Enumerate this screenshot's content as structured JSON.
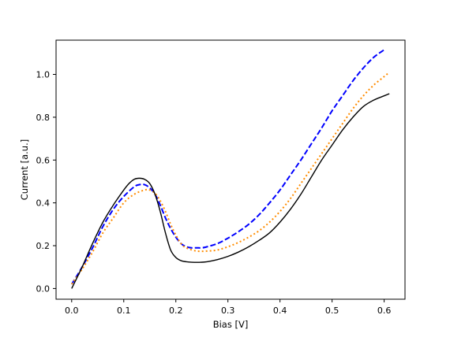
{
  "chart_data": {
    "type": "line",
    "title": "",
    "xlabel": "Bias [V]",
    "ylabel": "Current [a.u.]",
    "xlim": [
      -0.03,
      0.64
    ],
    "ylim": [
      -0.05,
      1.16
    ],
    "xticks": [
      0.0,
      0.1,
      0.2,
      0.3,
      0.4,
      0.5,
      0.6
    ],
    "xtick_labels": [
      "0.0",
      "0.1",
      "0.2",
      "0.3",
      "0.4",
      "0.5",
      "0.6"
    ],
    "yticks": [
      0.0,
      0.2,
      0.4,
      0.6,
      0.8,
      1.0
    ],
    "ytick_labels": [
      "0.0",
      "0.2",
      "0.4",
      "0.6",
      "0.8",
      "1.0"
    ],
    "grid": false,
    "legend": "none",
    "series": [
      {
        "color": "#000000",
        "style": "solid",
        "x": [
          0.0,
          0.02,
          0.04,
          0.06,
          0.08,
          0.1,
          0.11,
          0.12,
          0.13,
          0.14,
          0.15,
          0.16,
          0.17,
          0.18,
          0.19,
          0.2,
          0.21,
          0.22,
          0.24,
          0.26,
          0.28,
          0.3,
          0.32,
          0.34,
          0.36,
          0.38,
          0.4,
          0.42,
          0.44,
          0.46,
          0.48,
          0.5,
          0.52,
          0.54,
          0.56,
          0.58,
          0.6,
          0.61
        ],
        "y": [
          0.0,
          0.1,
          0.21,
          0.31,
          0.39,
          0.46,
          0.49,
          0.51,
          0.515,
          0.51,
          0.49,
          0.44,
          0.36,
          0.26,
          0.18,
          0.145,
          0.13,
          0.125,
          0.122,
          0.125,
          0.135,
          0.15,
          0.17,
          0.195,
          0.225,
          0.26,
          0.31,
          0.37,
          0.44,
          0.52,
          0.6,
          0.67,
          0.74,
          0.8,
          0.85,
          0.88,
          0.9,
          0.91
        ]
      },
      {
        "color": "#0000ff",
        "style": "dashed",
        "x": [
          0.0,
          0.02,
          0.04,
          0.06,
          0.08,
          0.1,
          0.12,
          0.13,
          0.14,
          0.15,
          0.16,
          0.17,
          0.18,
          0.19,
          0.2,
          0.21,
          0.22,
          0.23,
          0.24,
          0.25,
          0.26,
          0.28,
          0.3,
          0.32,
          0.34,
          0.36,
          0.38,
          0.4,
          0.42,
          0.44,
          0.46,
          0.48,
          0.5,
          0.52,
          0.54,
          0.56,
          0.58,
          0.6
        ],
        "y": [
          0.02,
          0.1,
          0.19,
          0.29,
          0.37,
          0.43,
          0.475,
          0.485,
          0.485,
          0.47,
          0.44,
          0.39,
          0.33,
          0.28,
          0.24,
          0.21,
          0.195,
          0.19,
          0.19,
          0.19,
          0.195,
          0.21,
          0.235,
          0.265,
          0.3,
          0.345,
          0.4,
          0.46,
          0.53,
          0.6,
          0.675,
          0.75,
          0.83,
          0.9,
          0.97,
          1.03,
          1.08,
          1.115
        ]
      },
      {
        "color": "#ff8c00",
        "style": "dotted",
        "x": [
          0.0,
          0.02,
          0.04,
          0.06,
          0.08,
          0.1,
          0.12,
          0.14,
          0.15,
          0.16,
          0.17,
          0.18,
          0.19,
          0.2,
          0.21,
          0.22,
          0.24,
          0.26,
          0.28,
          0.3,
          0.32,
          0.34,
          0.36,
          0.38,
          0.4,
          0.42,
          0.44,
          0.46,
          0.48,
          0.5,
          0.52,
          0.54,
          0.56,
          0.58,
          0.6,
          0.61
        ],
        "y": [
          0.02,
          0.09,
          0.17,
          0.26,
          0.33,
          0.4,
          0.44,
          0.46,
          0.46,
          0.445,
          0.41,
          0.36,
          0.3,
          0.25,
          0.21,
          0.19,
          0.175,
          0.175,
          0.18,
          0.195,
          0.215,
          0.24,
          0.27,
          0.31,
          0.36,
          0.42,
          0.49,
          0.56,
          0.63,
          0.7,
          0.77,
          0.84,
          0.9,
          0.95,
          0.99,
          1.01
        ]
      }
    ]
  }
}
